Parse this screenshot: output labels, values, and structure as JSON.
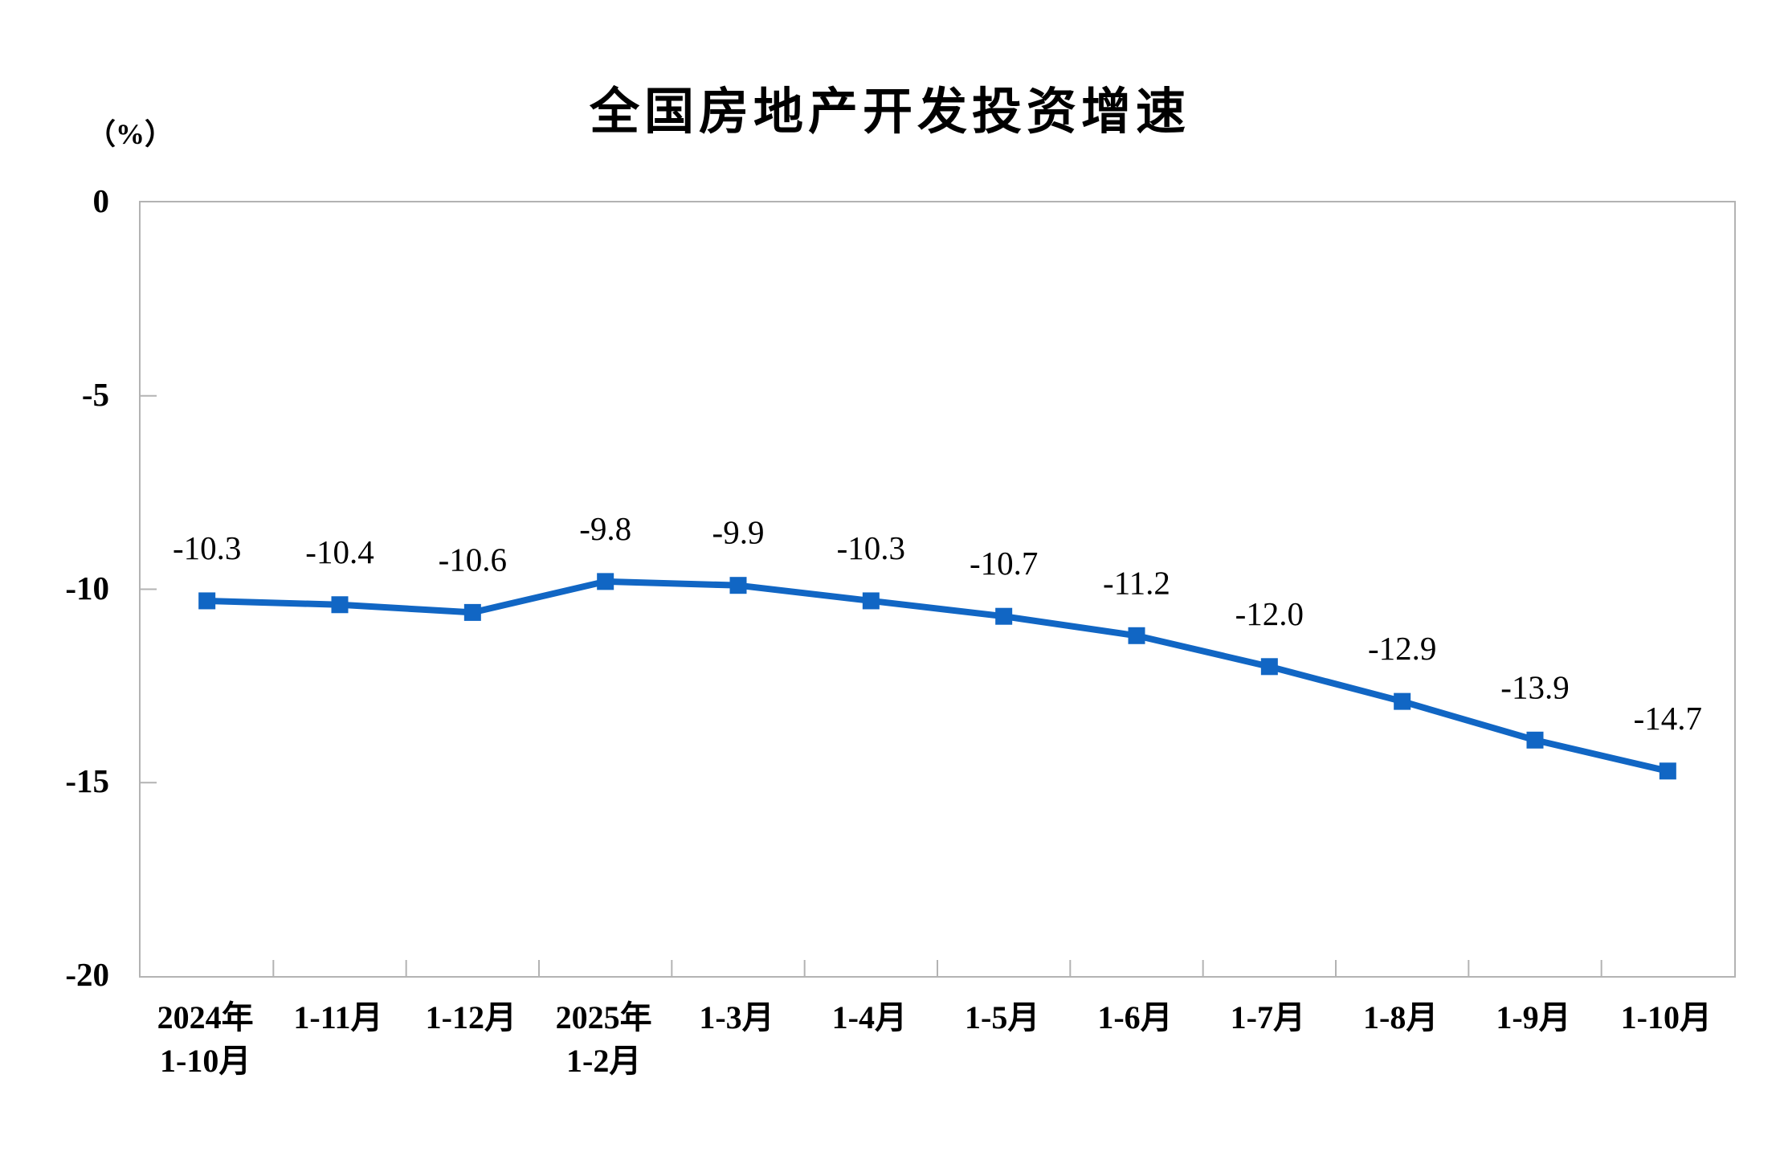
{
  "chart_data": {
    "type": "line",
    "title": "全国房地产开发投资增速",
    "unit_label": "（%）",
    "categories": [
      "2024年 1-10月",
      "1-11月",
      "1-12月",
      "2025年 1-2月",
      "1-3月",
      "1-4月",
      "1-5月",
      "1-6月",
      "1-7月",
      "1-8月",
      "1-9月",
      "1-10月"
    ],
    "category_label_lines": [
      [
        "2024年",
        "1-10月"
      ],
      [
        "1-11月"
      ],
      [
        "1-12月"
      ],
      [
        "2025年",
        "1-2月"
      ],
      [
        "1-3月"
      ],
      [
        "1-4月"
      ],
      [
        "1-5月"
      ],
      [
        "1-6月"
      ],
      [
        "1-7月"
      ],
      [
        "1-8月"
      ],
      [
        "1-9月"
      ],
      [
        "1-10月"
      ]
    ],
    "series": [
      {
        "name": "全国房地产开发投资增速",
        "values": [
          -10.3,
          -10.4,
          -10.6,
          -9.8,
          -9.9,
          -10.3,
          -10.7,
          -11.2,
          -12.0,
          -12.9,
          -13.9,
          -14.7
        ],
        "data_labels": [
          "-10.3",
          "-10.4",
          "-10.6",
          "-9.8",
          "-9.9",
          "-10.3",
          "-10.7",
          "-11.2",
          "-12.0",
          "-12.9",
          "-13.9",
          "-14.7"
        ]
      }
    ],
    "ylim": [
      -20,
      0
    ],
    "y_ticks": [
      0,
      -5,
      -10,
      -15,
      -20
    ],
    "y_tick_labels": [
      "0",
      "-5",
      "-10",
      "-15",
      "-20"
    ],
    "x_axis_inner_ticks": true,
    "grid": false,
    "legend": "none",
    "marker": "square",
    "colors": {
      "line": "#1166C4",
      "marker": "#1166C4",
      "axis": "#B3B3B3",
      "text": "#000000",
      "background": "#FFFFFF"
    }
  }
}
